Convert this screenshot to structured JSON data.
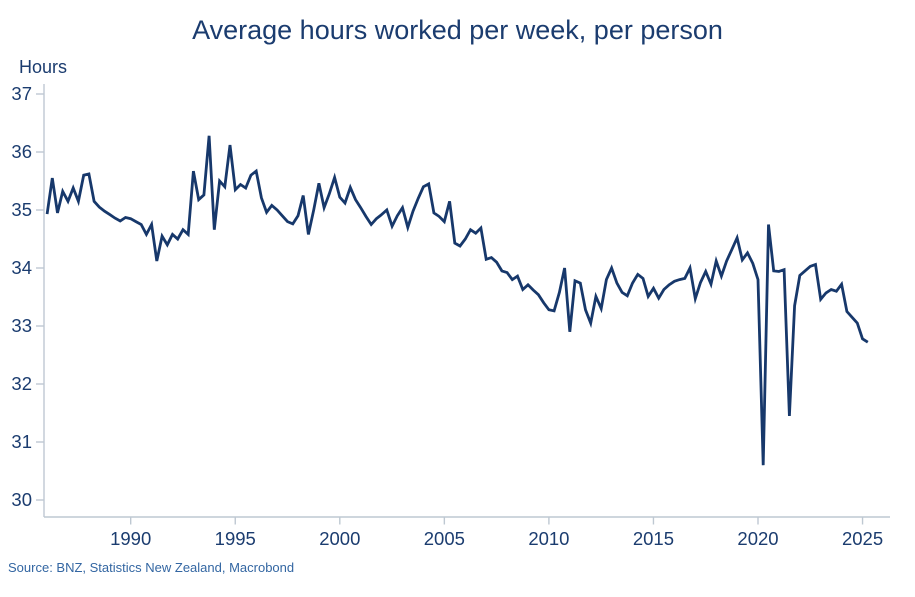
{
  "chart": {
    "title": "Average hours worked per week, per person",
    "y_axis": {
      "label": "Hours",
      "ticks": [
        37,
        36,
        35,
        34,
        33,
        32,
        31,
        30
      ],
      "min": 30,
      "max": 37
    },
    "x_axis": {
      "ticks": [
        1990,
        1995,
        2000,
        2005,
        2010,
        2015,
        2020,
        2025
      ]
    },
    "source": "Source: BNZ, Statistics New Zealand, Macrobond",
    "colors": {
      "line": "#17386B",
      "text": "#1B3C6F",
      "source_text": "#3366A2",
      "axis": "#BEC8D2",
      "background": "#FFFFFF"
    }
  },
  "chart_data": {
    "type": "line",
    "title": "Average hours worked per week, per person",
    "xlabel": "",
    "ylabel": "Hours",
    "ylim": [
      30,
      37
    ],
    "x_range": [
      1986.0,
      2025.25
    ],
    "frequency": "quarterly",
    "x_start": 1986.0,
    "x_step_years": 0.25,
    "grid": "off",
    "legend": "none",
    "series": [
      {
        "name": "Average hours worked per week, per person",
        "values": [
          34.93,
          35.55,
          34.95,
          35.32,
          35.15,
          35.38,
          35.15,
          35.6,
          35.62,
          35.15,
          35.05,
          34.98,
          34.92,
          34.86,
          34.81,
          34.87,
          34.85,
          34.8,
          34.75,
          34.58,
          34.75,
          34.12,
          34.55,
          34.4,
          34.58,
          34.5,
          34.66,
          34.58,
          35.67,
          35.18,
          35.26,
          36.28,
          34.66,
          35.5,
          35.4,
          36.12,
          35.35,
          35.44,
          35.38,
          35.6,
          35.67,
          35.21,
          34.96,
          35.08,
          35.0,
          34.9,
          34.8,
          34.76,
          34.9,
          35.25,
          34.58,
          35.0,
          35.46,
          35.04,
          35.28,
          35.56,
          35.22,
          35.12,
          35.39,
          35.18,
          35.04,
          34.89,
          34.75,
          34.85,
          34.92,
          35.0,
          34.72,
          34.9,
          35.04,
          34.7,
          34.98,
          35.2,
          35.4,
          35.45,
          34.95,
          34.89,
          34.8,
          35.15,
          34.43,
          34.38,
          34.5,
          34.66,
          34.6,
          34.69,
          34.15,
          34.18,
          34.1,
          33.95,
          33.92,
          33.8,
          33.86,
          33.63,
          33.71,
          33.62,
          33.54,
          33.4,
          33.28,
          33.26,
          33.58,
          34.0,
          32.9,
          33.78,
          33.74,
          33.28,
          33.05,
          33.51,
          33.3,
          33.8,
          34.0,
          33.74,
          33.58,
          33.52,
          33.74,
          33.89,
          33.82,
          33.51,
          33.65,
          33.48,
          33.63,
          33.71,
          33.77,
          33.8,
          33.82,
          34.0,
          33.47,
          33.75,
          33.94,
          33.72,
          34.12,
          33.86,
          34.12,
          34.32,
          34.52,
          34.14,
          34.26,
          34.08,
          33.8,
          30.6,
          34.75,
          33.95,
          33.94,
          33.97,
          31.45,
          33.35,
          33.87,
          33.95,
          34.03,
          34.06,
          33.46,
          33.57,
          33.63,
          33.6,
          33.72,
          33.25,
          33.15,
          33.05,
          32.78,
          32.72
        ]
      }
    ]
  }
}
